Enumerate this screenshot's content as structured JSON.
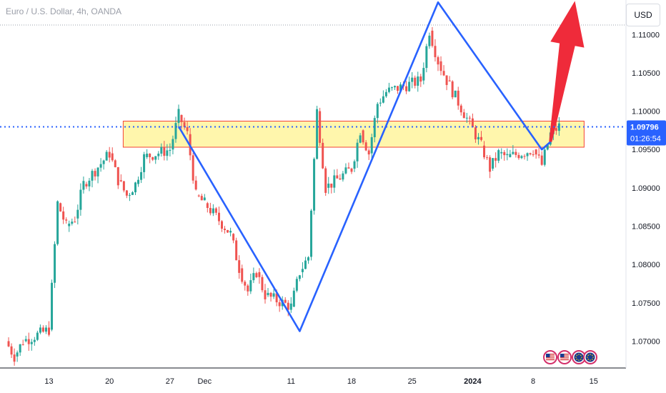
{
  "header": {
    "title": "Euro / U.S. Dollar, 4h, OANDA",
    "currency_button": "USD"
  },
  "price_tag": {
    "price": "1.09796",
    "countdown": "01:26:54"
  },
  "colors": {
    "up": "#26a69a",
    "down": "#ef5350",
    "pattern": "#2962ff",
    "zone_fill": "#fff59d",
    "zone_border": "#f44336",
    "arrow": "#ef2b3a",
    "price_tag": "#2962ff"
  },
  "events": {
    "icons": [
      "us-flag-event-icon",
      "us-flag-event-icon",
      "eu-flag-event-icon",
      "eu-flag-event-icon"
    ]
  },
  "chart_data": {
    "type": "candlestick",
    "title": "Euro / U.S. Dollar, 4h, OANDA",
    "y_ticks": [
      "1.11000",
      "1.10500",
      "1.10000",
      "1.09500",
      "1.09000",
      "1.08500",
      "1.08000",
      "1.07500",
      "1.07000"
    ],
    "ylim": [
      1.0665,
      1.1145
    ],
    "x_ticks": [
      "13",
      "20",
      "27",
      "Dec",
      "11",
      "18",
      "25",
      "2024",
      "8",
      "15"
    ],
    "current_price": 1.09796,
    "candles_series": [
      {
        "x": "Nov 08",
        "close": 1.07
      },
      {
        "x": "Nov 09",
        "close": 1.068
      },
      {
        "x": "Nov 10",
        "close": 1.07
      },
      {
        "x": "Nov 13",
        "close": 1.0715
      },
      {
        "x": "Nov 14",
        "close": 1.088
      },
      {
        "x": "Nov 15",
        "close": 1.085
      },
      {
        "x": "Nov 16",
        "close": 1.086
      },
      {
        "x": "Nov 17",
        "close": 1.0905
      },
      {
        "x": "Nov 20",
        "close": 1.0945
      },
      {
        "x": "Nov 21",
        "close": 1.091
      },
      {
        "x": "Nov 22",
        "close": 1.089
      },
      {
        "x": "Nov 23",
        "close": 1.0905
      },
      {
        "x": "Nov 24",
        "close": 1.094
      },
      {
        "x": "Nov 27",
        "close": 1.095
      },
      {
        "x": "Nov 28",
        "close": 1.0995
      },
      {
        "x": "Nov 29",
        "close": 1.097
      },
      {
        "x": "Nov 30",
        "close": 1.089
      },
      {
        "x": "Dec 01",
        "close": 1.088
      },
      {
        "x": "Dec 04",
        "close": 1.084
      },
      {
        "x": "Dec 05",
        "close": 1.0795
      },
      {
        "x": "Dec 06",
        "close": 1.0765
      },
      {
        "x": "Dec 07",
        "close": 1.079
      },
      {
        "x": "Dec 08",
        "close": 1.076
      },
      {
        "x": "Dec 11",
        "close": 1.0745
      },
      {
        "x": "Dec 12",
        "close": 1.079
      },
      {
        "x": "Dec 13",
        "close": 1.081
      },
      {
        "x": "Dec 14",
        "close": 1.1
      },
      {
        "x": "Dec 15",
        "close": 1.09
      },
      {
        "x": "Dec 18",
        "close": 1.0925
      },
      {
        "x": "Dec 19",
        "close": 1.0975
      },
      {
        "x": "Dec 20",
        "close": 1.0945
      },
      {
        "x": "Dec 21",
        "close": 1.101
      },
      {
        "x": "Dec 22",
        "close": 1.1025
      },
      {
        "x": "Dec 26",
        "close": 1.104
      },
      {
        "x": "Dec 27",
        "close": 1.1105
      },
      {
        "x": "Dec 28",
        "close": 1.1065
      },
      {
        "x": "Dec 29",
        "close": 1.104
      },
      {
        "x": "Jan 02",
        "close": 1.0955
      },
      {
        "x": "Jan 03",
        "close": 1.0925
      },
      {
        "x": "Jan 04",
        "close": 1.0945
      },
      {
        "x": "Jan 05",
        "close": 1.094
      },
      {
        "x": "Jan 08",
        "close": 1.095
      },
      {
        "x": "Jan 09",
        "close": 1.093
      },
      {
        "x": "Jan 10",
        "close": 1.097
      },
      {
        "x": "Jan 11",
        "close": 1.098
      }
    ],
    "annotations": {
      "zone": {
        "top": 1.0987,
        "bottom": 1.0953,
        "from": "Nov 22",
        "to": "Jan 11"
      },
      "pattern_points": [
        {
          "x": "Nov 28",
          "y": 1.098
        },
        {
          "x": "Dec 12",
          "y": 1.0713
        },
        {
          "x": "Dec 28",
          "y": 1.1142
        },
        {
          "x": "Jan 09",
          "y": 1.095
        },
        {
          "x": "Jan 10",
          "y": 1.096
        }
      ],
      "arrow": {
        "from": {
          "x": "Jan 10",
          "y": 1.096
        },
        "to": {
          "x": "Jan 12",
          "y": 1.114
        }
      }
    }
  }
}
